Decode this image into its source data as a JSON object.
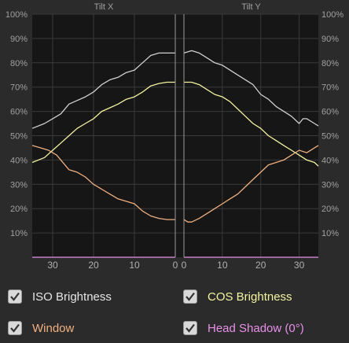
{
  "chart_data": {
    "type": "line",
    "panels": [
      {
        "title": "Tilt X",
        "x_ticks": [
          "30",
          "20",
          "10",
          "0"
        ],
        "xlim": [
          35,
          0
        ]
      },
      {
        "title": "Tilt Y",
        "x_ticks": [
          "0",
          "10",
          "20",
          "30"
        ],
        "xlim": [
          0,
          35
        ]
      }
    ],
    "y_ticks": [
      "10%",
      "20%",
      "30%",
      "40%",
      "50%",
      "60%",
      "70%",
      "80%",
      "90%",
      "100%"
    ],
    "ylim": [
      0,
      100
    ],
    "grid": true,
    "series": [
      {
        "name": "ISO Brightness",
        "color": "#d0d0d0",
        "tilt_x": {
          "x": [
            35,
            32,
            30,
            28,
            26,
            24,
            22,
            20,
            18,
            16,
            14,
            12,
            10,
            8,
            6,
            4,
            2,
            0
          ],
          "y": [
            53,
            55,
            57,
            59,
            63,
            64.5,
            66,
            68,
            71,
            73,
            74,
            76,
            77,
            80,
            83,
            84,
            84,
            84
          ]
        },
        "tilt_y": {
          "x": [
            0,
            2,
            4,
            6,
            8,
            10,
            12,
            14,
            16,
            18,
            20,
            22,
            24,
            26,
            28,
            30,
            31,
            32,
            34,
            35
          ],
          "y": [
            84,
            85,
            84,
            82,
            80,
            79,
            77,
            75,
            73,
            71,
            67,
            65,
            62,
            60,
            58,
            55,
            57,
            57,
            55,
            54
          ]
        }
      },
      {
        "name": "COS Brightness",
        "color": "#f4f4a0",
        "tilt_x": {
          "x": [
            35,
            32,
            30,
            28,
            26,
            24,
            22,
            20,
            18,
            16,
            14,
            12,
            10,
            8,
            6,
            4,
            2,
            0
          ],
          "y": [
            39,
            41,
            44,
            47,
            50,
            53,
            55,
            57,
            60,
            61.5,
            63,
            65,
            66,
            68,
            70.5,
            71.5,
            72,
            72
          ]
        },
        "tilt_y": {
          "x": [
            0,
            2,
            4,
            6,
            8,
            10,
            12,
            14,
            16,
            18,
            20,
            22,
            24,
            26,
            28,
            30,
            32,
            34,
            35
          ],
          "y": [
            72,
            72,
            71,
            69,
            67,
            66,
            64,
            61,
            58,
            55,
            53,
            50,
            48,
            46,
            44,
            42,
            40,
            39,
            37.5
          ]
        }
      },
      {
        "name": "Window",
        "color": "#f0b080",
        "tilt_x": {
          "x": [
            35,
            33,
            31,
            29,
            28,
            26,
            24,
            22,
            20,
            18,
            16,
            14,
            12,
            10,
            8,
            6,
            4,
            2,
            1,
            0
          ],
          "y": [
            46,
            45,
            44,
            42,
            40,
            36,
            35,
            33,
            30,
            28,
            26,
            24,
            23,
            22,
            19,
            17,
            16,
            15.5,
            15.5,
            15.5
          ]
        },
        "tilt_y": {
          "x": [
            0,
            1,
            2,
            4,
            6,
            8,
            10,
            12,
            14,
            16,
            18,
            20,
            22,
            24,
            26,
            28,
            30,
            32,
            34,
            35
          ],
          "y": [
            15.5,
            14.5,
            14.5,
            16,
            18,
            20,
            22,
            24,
            26,
            29,
            32,
            35,
            38,
            39,
            40,
            42,
            44,
            43,
            45,
            46
          ]
        }
      },
      {
        "name": "Head Shadow (0°)",
        "color": "#e890e8",
        "tilt_x": {
          "x": [
            35,
            0
          ],
          "y": [
            0,
            0
          ]
        },
        "tilt_y": {
          "x": [
            0,
            35
          ],
          "y": [
            0,
            0
          ]
        }
      }
    ]
  },
  "legend": [
    {
      "label": "ISO Brightness",
      "checked_glyph": "✓",
      "color": "#e6e6e6"
    },
    {
      "label": "COS Brightness",
      "checked_glyph": "✓",
      "color": "#f4f4a0"
    },
    {
      "label": "Window",
      "checked_glyph": "✓",
      "color": "#f0b080"
    },
    {
      "label": "Head Shadow (0°)",
      "checked_glyph": "✓",
      "color": "#e890e8"
    }
  ]
}
